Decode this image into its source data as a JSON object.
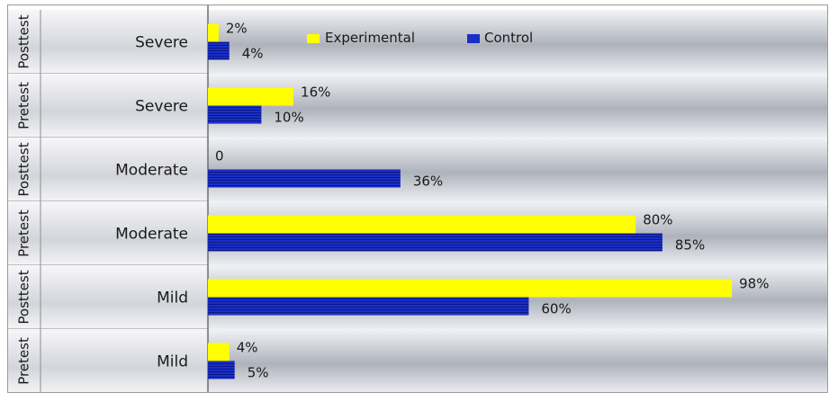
{
  "chart_data": {
    "type": "bar",
    "orientation": "horizontal",
    "categories": [
      {
        "phase": "Posttest",
        "severity": "Severe"
      },
      {
        "phase": "Pretest",
        "severity": "Severe"
      },
      {
        "phase": "Posttest",
        "severity": "Moderate"
      },
      {
        "phase": "Pretest",
        "severity": "Moderate"
      },
      {
        "phase": "Posttest",
        "severity": "Mild"
      },
      {
        "phase": "Pretest",
        "severity": "Mild"
      }
    ],
    "series": [
      {
        "name": "Experimental",
        "color": "#ffff00",
        "values": [
          2,
          16,
          0,
          80,
          98,
          4
        ],
        "labels": [
          "2%",
          "16%",
          "0",
          "80%",
          "98%",
          "4%"
        ]
      },
      {
        "name": "Control",
        "color": "#1a2fc4",
        "values": [
          4,
          10,
          36,
          85,
          60,
          5
        ],
        "labels": [
          "4%",
          "10%",
          "36%",
          "85%",
          "60%",
          "5%"
        ]
      }
    ],
    "xlim": [
      0,
      100
    ],
    "grid": false,
    "legend": "top"
  }
}
